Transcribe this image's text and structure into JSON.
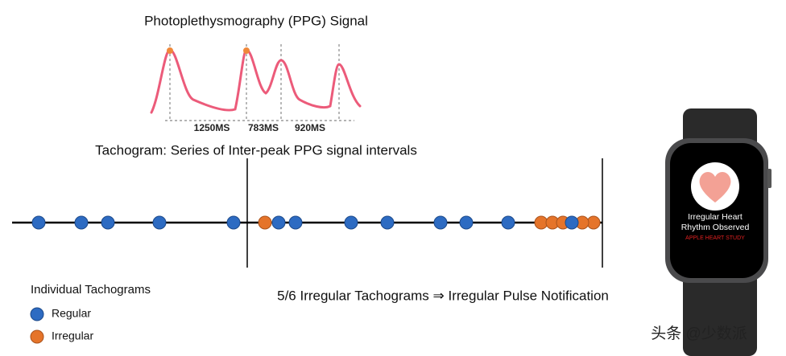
{
  "ppg": {
    "title": "Photoplethysmography (PPG) Signal",
    "intervals": [
      "1250MS",
      "783MS",
      "920MS"
    ]
  },
  "tachogram": {
    "caption": "Tachogram: Series of Inter-peak PPG signal intervals"
  },
  "legend": {
    "title": "Individual Tachograms",
    "regular": "Regular",
    "irregular": "Irregular"
  },
  "conclusion": "5/6 Irregular Tachograms ⇒ Irregular Pulse Notification",
  "watch": {
    "line1": "Irregular Heart",
    "line2": "Rhythm Observed",
    "line3": "APPLE HEART STUDY"
  },
  "watermark": "头条 @少数派"
}
